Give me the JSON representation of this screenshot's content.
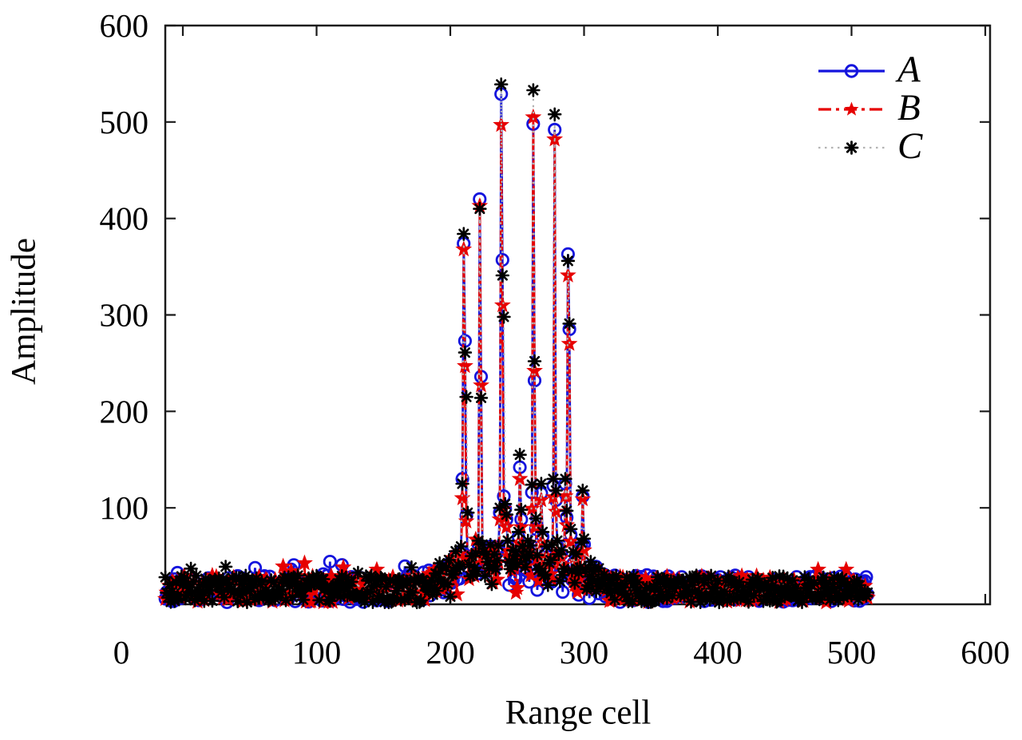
{
  "chart_data": {
    "type": "line",
    "title": "",
    "xlabel": "Range cell",
    "ylabel": "Amplitude",
    "xlim": [
      -13,
      604
    ],
    "ylim": [
      0,
      600
    ],
    "x_tick_values": [
      0,
      100,
      200,
      300,
      400,
      500,
      600
    ],
    "y_tick_values": [
      100,
      200,
      300,
      400,
      500,
      600
    ],
    "grid": false,
    "legend_position": "top-right",
    "legend_border": false,
    "noise_floor": {
      "x_start": -13,
      "x_end": 512,
      "band_min": 2,
      "band_max": 32,
      "elevated_region": [
        190,
        310
      ],
      "elevated_extra_max": 40
    },
    "series": [
      {
        "name": "A",
        "color": "#1414dd",
        "line_color": "#1414dd",
        "marker": "circle",
        "line_style": "solid",
        "peaks": [
          [
            199,
            42
          ],
          [
            204,
            50
          ],
          [
            208,
            55
          ],
          [
            209,
            130
          ],
          [
            210,
            374
          ],
          [
            211,
            273
          ],
          [
            212,
            92
          ],
          [
            213,
            50
          ],
          [
            216,
            45
          ],
          [
            221,
            62
          ],
          [
            222,
            420
          ],
          [
            223,
            236
          ],
          [
            224,
            58
          ],
          [
            228,
            40
          ],
          [
            233,
            48
          ],
          [
            237,
            95
          ],
          [
            238,
            529
          ],
          [
            239,
            357
          ],
          [
            240,
            112
          ],
          [
            241,
            99
          ],
          [
            242,
            88
          ],
          [
            243,
            60
          ],
          [
            247,
            52
          ],
          [
            251,
            70
          ],
          [
            252,
            142
          ],
          [
            253,
            88
          ],
          [
            254,
            55
          ],
          [
            258,
            60
          ],
          [
            261,
            116
          ],
          [
            262,
            498
          ],
          [
            263,
            232
          ],
          [
            264,
            78
          ],
          [
            268,
            115
          ],
          [
            269,
            70
          ],
          [
            272,
            55
          ],
          [
            277,
            123
          ],
          [
            278,
            492
          ],
          [
            279,
            108
          ],
          [
            280,
            60
          ],
          [
            283,
            52
          ],
          [
            286,
            125
          ],
          [
            287,
            90
          ],
          [
            288,
            363
          ],
          [
            289,
            285
          ],
          [
            290,
            72
          ],
          [
            294,
            48
          ],
          [
            298,
            60
          ],
          [
            299,
            112
          ],
          [
            300,
            62
          ],
          [
            305,
            40
          ]
        ]
      },
      {
        "name": "B",
        "color": "#e60000",
        "line_color": "#e60000",
        "marker": "star",
        "line_style": "dashdot",
        "peaks": [
          [
            199,
            38
          ],
          [
            204,
            45
          ],
          [
            208,
            48
          ],
          [
            209,
            110
          ],
          [
            210,
            368
          ],
          [
            211,
            247
          ],
          [
            212,
            86
          ],
          [
            213,
            45
          ],
          [
            216,
            40
          ],
          [
            221,
            55
          ],
          [
            222,
            413
          ],
          [
            223,
            227
          ],
          [
            224,
            52
          ],
          [
            228,
            36
          ],
          [
            233,
            44
          ],
          [
            237,
            88
          ],
          [
            238,
            497
          ],
          [
            239,
            310
          ],
          [
            240,
            99
          ],
          [
            241,
            90
          ],
          [
            242,
            80
          ],
          [
            243,
            55
          ],
          [
            247,
            48
          ],
          [
            251,
            64
          ],
          [
            252,
            130
          ],
          [
            253,
            80
          ],
          [
            254,
            50
          ],
          [
            258,
            55
          ],
          [
            261,
            99
          ],
          [
            262,
            505
          ],
          [
            263,
            242
          ],
          [
            264,
            80
          ],
          [
            268,
            108
          ],
          [
            269,
            64
          ],
          [
            272,
            50
          ],
          [
            277,
            111
          ],
          [
            278,
            482
          ],
          [
            279,
            96
          ],
          [
            280,
            54
          ],
          [
            283,
            48
          ],
          [
            286,
            112
          ],
          [
            287,
            82
          ],
          [
            288,
            341
          ],
          [
            289,
            270
          ],
          [
            290,
            65
          ],
          [
            294,
            44
          ],
          [
            298,
            54
          ],
          [
            299,
            109
          ],
          [
            300,
            56
          ],
          [
            305,
            36
          ]
        ]
      },
      {
        "name": "C",
        "color": "#000000",
        "line_color": "#b3b3b3",
        "marker": "asterisk",
        "line_style": "dotted",
        "peaks": [
          [
            199,
            46
          ],
          [
            204,
            55
          ],
          [
            208,
            60
          ],
          [
            209,
            125
          ],
          [
            210,
            384
          ],
          [
            211,
            261
          ],
          [
            212,
            215
          ],
          [
            213,
            95
          ],
          [
            216,
            50
          ],
          [
            221,
            66
          ],
          [
            222,
            410
          ],
          [
            223,
            214
          ],
          [
            224,
            62
          ],
          [
            228,
            44
          ],
          [
            233,
            52
          ],
          [
            237,
            100
          ],
          [
            238,
            539
          ],
          [
            239,
            341
          ],
          [
            240,
            298
          ],
          [
            241,
            104
          ],
          [
            242,
            93
          ],
          [
            243,
            66
          ],
          [
            247,
            56
          ],
          [
            251,
            75
          ],
          [
            252,
            155
          ],
          [
            253,
            98
          ],
          [
            254,
            60
          ],
          [
            258,
            66
          ],
          [
            261,
            124
          ],
          [
            262,
            533
          ],
          [
            263,
            252
          ],
          [
            264,
            89
          ],
          [
            268,
            125
          ],
          [
            269,
            75
          ],
          [
            272,
            60
          ],
          [
            277,
            130
          ],
          [
            278,
            508
          ],
          [
            279,
            118
          ],
          [
            280,
            66
          ],
          [
            283,
            56
          ],
          [
            286,
            130
          ],
          [
            287,
            97
          ],
          [
            288,
            356
          ],
          [
            289,
            291
          ],
          [
            290,
            78
          ],
          [
            294,
            52
          ],
          [
            298,
            64
          ],
          [
            299,
            118
          ],
          [
            300,
            68
          ],
          [
            305,
            44
          ]
        ]
      }
    ]
  }
}
